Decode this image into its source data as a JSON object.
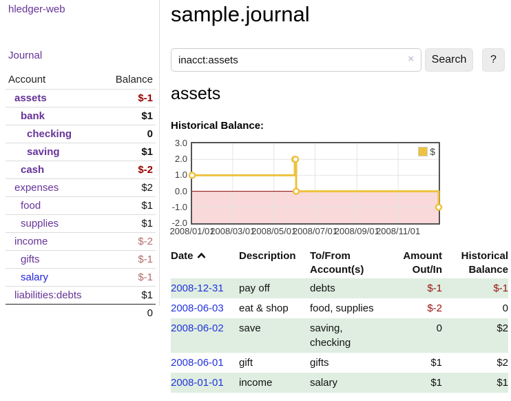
{
  "colors": {
    "link_purple": "#663399",
    "link_blue": "#2222dd",
    "negative_strong": "#990000",
    "negative_soft": "#b36b6b",
    "table_negative": "#991111",
    "row_stripe_green": "#dfeee0",
    "series_gold": "#edc240",
    "below_zero_fill": "#f9d9d9",
    "zero_line": "#8b0000"
  },
  "sidebar": {
    "app_title": "hledger-web",
    "journal_link": "Journal",
    "table": {
      "account_header": "Account",
      "balance_header": "Balance",
      "rows": [
        {
          "name": "assets",
          "balance": "$-1"
        },
        {
          "name": "bank",
          "balance": "$1"
        },
        {
          "name": "checking",
          "balance": "0"
        },
        {
          "name": "saving",
          "balance": "$1"
        },
        {
          "name": "cash",
          "balance": "$-2"
        },
        {
          "name": "expenses",
          "balance": "$2"
        },
        {
          "name": "food",
          "balance": "$1"
        },
        {
          "name": "supplies",
          "balance": "$1"
        },
        {
          "name": "income",
          "balance": "$-2"
        },
        {
          "name": "gifts",
          "balance": "$-1"
        },
        {
          "name": "salary",
          "balance": "$-1"
        },
        {
          "name": "liabilities:debts",
          "balance": "$1"
        }
      ],
      "total": "0"
    }
  },
  "main": {
    "title": "sample.journal",
    "search": {
      "value": "inacct:assets",
      "clear_label": "×",
      "button_label": "Search",
      "help_label": "?"
    },
    "account_heading": "assets",
    "chart_title": "Historical Balance:",
    "chart_data": {
      "type": "line",
      "step": true,
      "title": "Historical Balance:",
      "legend_position": "top-right",
      "ylim": [
        -2,
        3
      ],
      "xlim_days": [
        0,
        365
      ],
      "y_ticks": [
        3.0,
        2.0,
        1.0,
        0.0,
        -1.0,
        -2.0
      ],
      "x_ticks": [
        {
          "label": "2008/01/01",
          "day": 0
        },
        {
          "label": "2008/03/01",
          "day": 60
        },
        {
          "label": "2008/05/01",
          "day": 121
        },
        {
          "label": "2008/07/01",
          "day": 182
        },
        {
          "label": "2008/09/01",
          "day": 244
        },
        {
          "label": "2008/11/01",
          "day": 305
        }
      ],
      "zero_line_color": "#8b0000",
      "below_zero_fill": "#f9d9d9",
      "grid_color": "#e4e4e4",
      "series": [
        {
          "name": "$",
          "color": "#edc240",
          "points": [
            {
              "date": "2008-01-01",
              "day": 0,
              "value": 1
            },
            {
              "date": "2008-06-01",
              "day": 152,
              "value": 2
            },
            {
              "date": "2008-06-02",
              "day": 153,
              "value": 2
            },
            {
              "date": "2008-06-03",
              "day": 154,
              "value": 0
            },
            {
              "date": "2008-12-31",
              "day": 365,
              "value": -1
            }
          ]
        }
      ]
    },
    "register": {
      "headers": {
        "date": "Date",
        "description": "Description",
        "account": "To/From Account(s)",
        "amount": "Amount Out/In",
        "balance": "Historical Balance"
      },
      "rows": [
        {
          "date": "2008-12-31",
          "description": "pay off",
          "account": "debts",
          "amount": "$-1",
          "balance": "$-1"
        },
        {
          "date": "2008-06-03",
          "description": "eat & shop",
          "account": "food, supplies",
          "amount": "$-2",
          "balance": "0"
        },
        {
          "date": "2008-06-02",
          "description": "save",
          "account": "saving, checking",
          "amount": "0",
          "balance": "$2"
        },
        {
          "date": "2008-06-01",
          "description": "gift",
          "account": "gifts",
          "amount": "$1",
          "balance": "$2"
        },
        {
          "date": "2008-01-01",
          "description": "income",
          "account": "salary",
          "amount": "$1",
          "balance": "$1"
        }
      ]
    }
  }
}
